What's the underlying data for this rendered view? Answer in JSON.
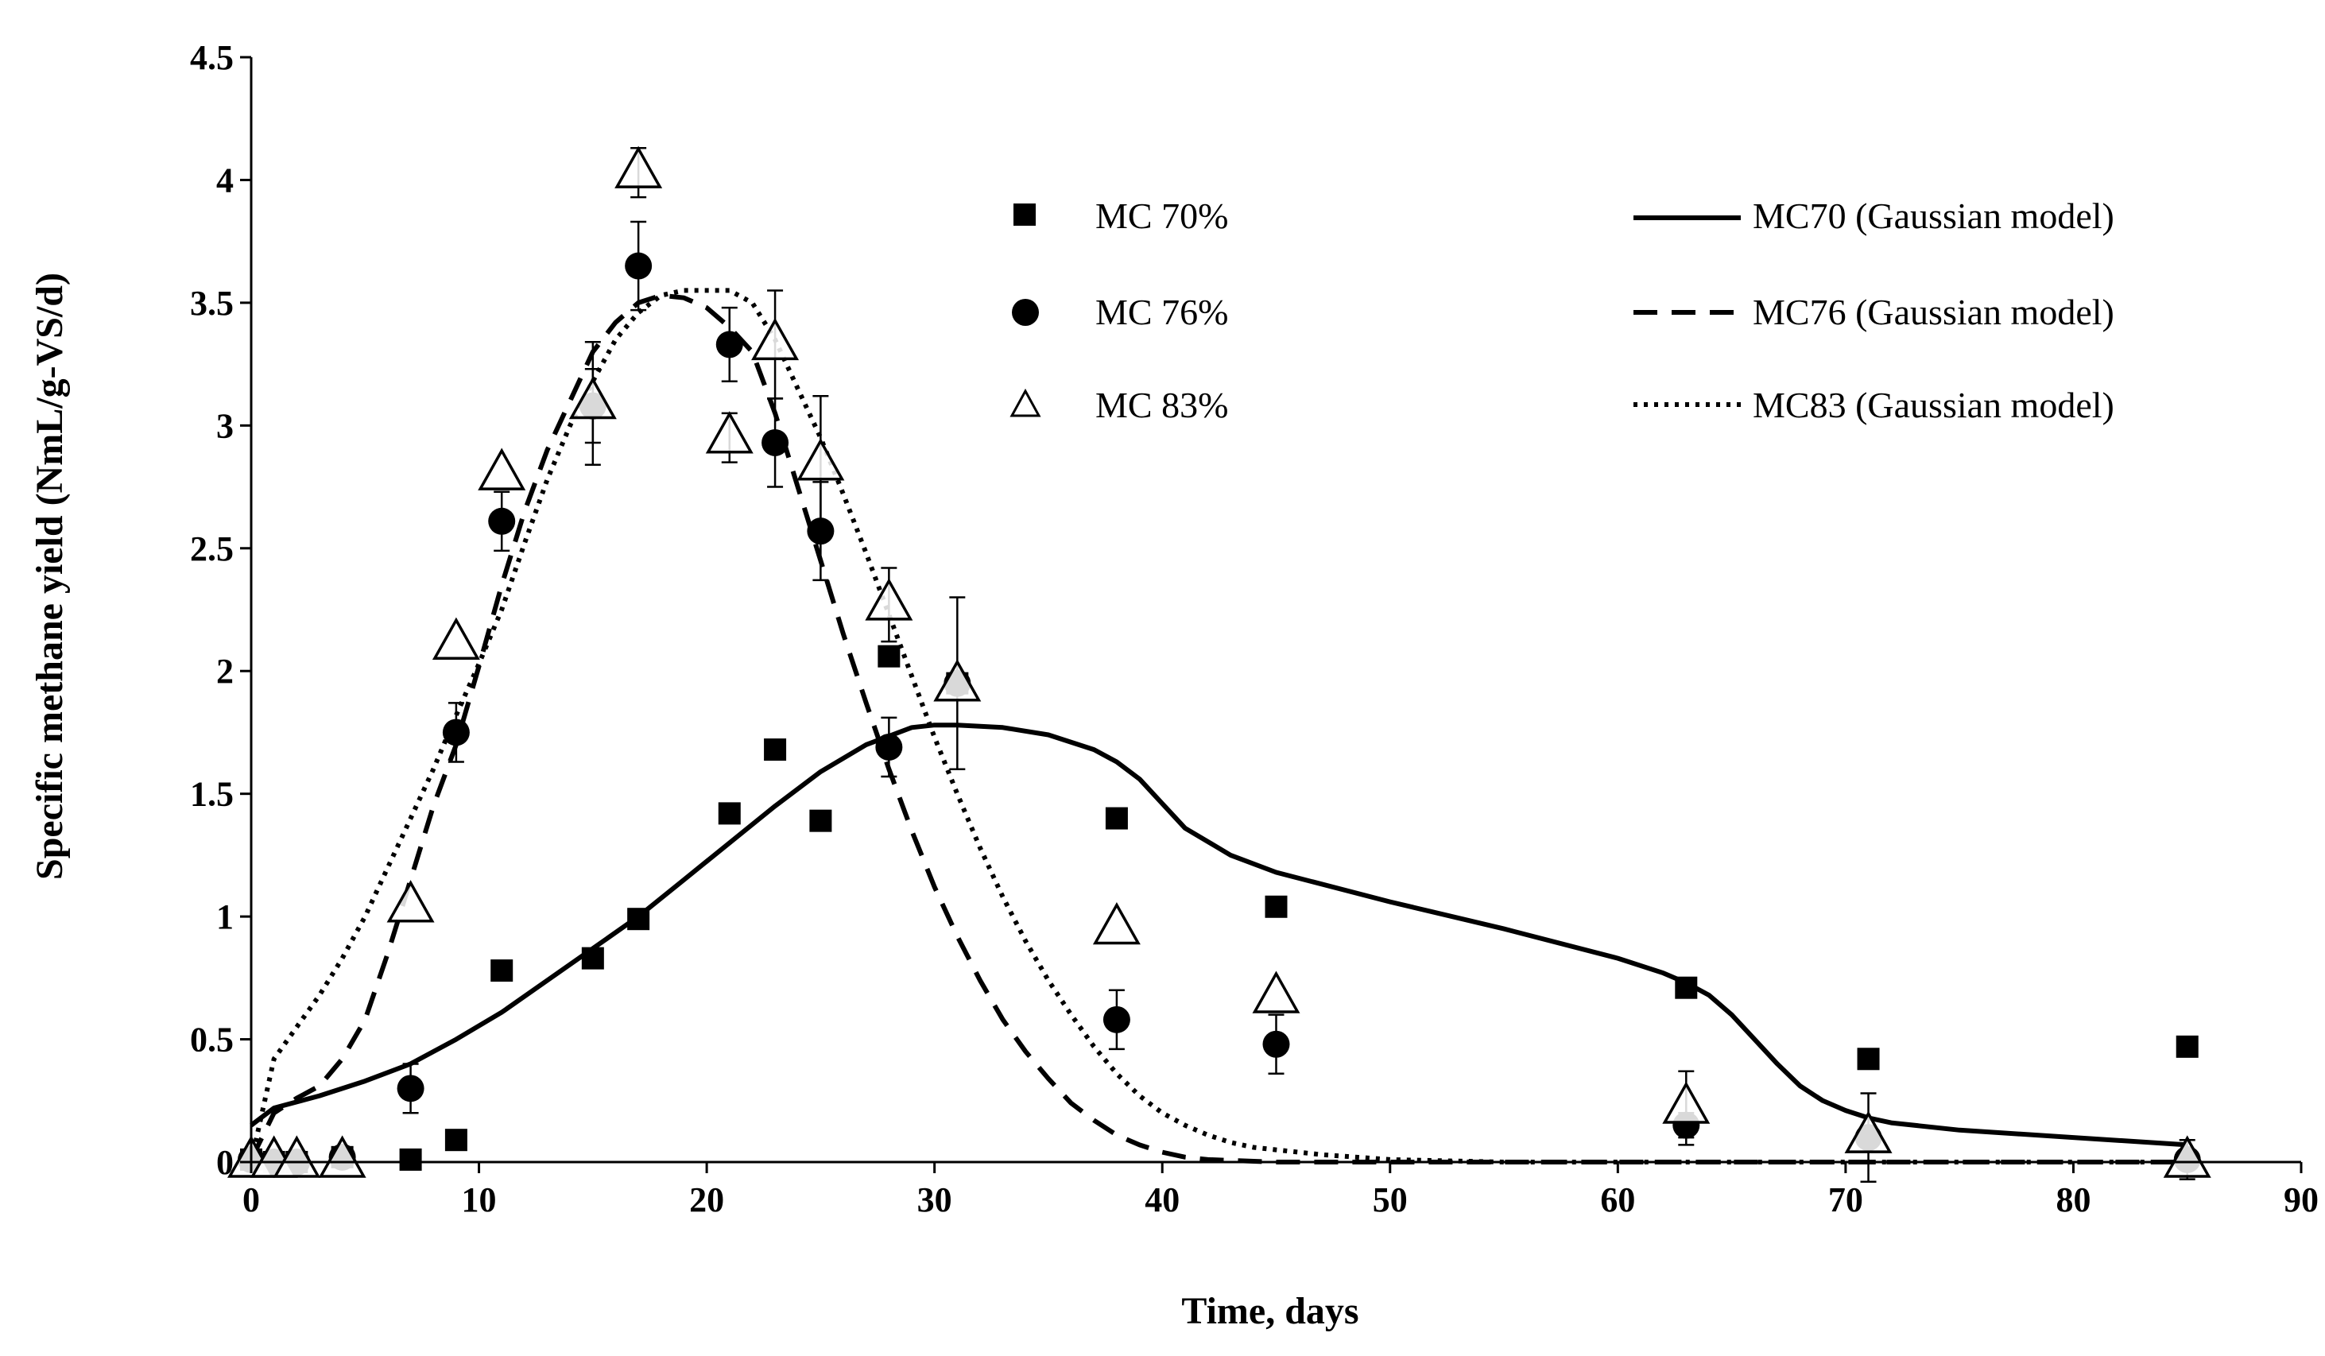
{
  "chart_data": {
    "type": "scatter",
    "title": "",
    "xlabel": "Time, days",
    "ylabel": "Specific methane yield (NmL/g-VS/d)",
    "xlim": [
      0,
      90
    ],
    "ylim": [
      0,
      4.5
    ],
    "xticks": [
      0,
      10,
      20,
      30,
      40,
      50,
      60,
      70,
      80,
      90
    ],
    "yticks": [
      0,
      0.5,
      1,
      1.5,
      2,
      2.5,
      3,
      3.5,
      4,
      4.5
    ],
    "xtick_labels": [
      "0",
      "10",
      "20",
      "30",
      "40",
      "50",
      "60",
      "70",
      "80",
      "90"
    ],
    "ytick_labels": [
      "0",
      "0.5",
      "1",
      "1.5",
      "2",
      "2.5",
      "3",
      "3.5",
      "4",
      "4.5"
    ],
    "grid": false,
    "legend": {
      "placement": "top-right",
      "markers": [
        {
          "label": "MC 70%",
          "series": "MC 70%"
        },
        {
          "label": "MC 76%",
          "series": "MC 76%"
        },
        {
          "label": "MC 83%",
          "series": "MC 83%"
        }
      ],
      "lines": [
        {
          "label": "MC70 (Gaussian model)",
          "style": "solid"
        },
        {
          "label": "MC76 (Gaussian model)",
          "style": "dashed"
        },
        {
          "label": "MC83 (Gaussian model)",
          "style": "dotted"
        }
      ]
    },
    "series": [
      {
        "name": "MC 70%",
        "marker": "square",
        "color": "#000000",
        "points": [
          [
            0,
            0.01
          ],
          [
            1,
            0.0
          ],
          [
            2,
            0.0
          ],
          [
            4,
            0.02
          ],
          [
            7,
            0.01
          ],
          [
            9,
            0.09
          ],
          [
            11,
            0.78
          ],
          [
            15,
            0.83
          ],
          [
            17,
            0.99
          ],
          [
            21,
            1.42
          ],
          [
            23,
            1.68
          ],
          [
            25,
            1.39
          ],
          [
            28,
            2.06
          ],
          [
            31,
            1.95
          ],
          [
            38,
            1.4
          ],
          [
            45,
            1.04
          ],
          [
            63,
            0.71
          ],
          [
            71,
            0.42
          ],
          [
            85,
            0.47
          ]
        ],
        "errors": [
          0,
          0,
          0,
          0,
          0,
          0,
          0,
          0,
          0,
          0,
          0,
          0,
          0,
          0,
          0,
          0,
          0,
          0,
          0
        ]
      },
      {
        "name": "MC 76%",
        "marker": "circle",
        "color": "#000000",
        "points": [
          [
            0,
            0.01
          ],
          [
            1,
            0.0
          ],
          [
            2,
            0.0
          ],
          [
            4,
            0.02
          ],
          [
            7,
            0.3
          ],
          [
            9,
            1.75
          ],
          [
            11,
            2.61
          ],
          [
            15,
            3.08
          ],
          [
            17,
            3.65
          ],
          [
            21,
            3.33
          ],
          [
            23,
            2.93
          ],
          [
            25,
            2.57
          ],
          [
            28,
            1.69
          ],
          [
            31,
            1.95
          ],
          [
            38,
            0.58
          ],
          [
            45,
            0.48
          ],
          [
            63,
            0.15
          ],
          [
            71,
            0.1
          ],
          [
            85,
            0.01
          ]
        ],
        "errors": [
          0,
          0,
          0,
          0,
          0.1,
          0.12,
          0.12,
          0.15,
          0.18,
          0.15,
          0.18,
          0.2,
          0.12,
          0.35,
          0.12,
          0.12,
          0.05,
          0.18,
          0.08
        ]
      },
      {
        "name": "MC 83%",
        "marker": "triangle-open",
        "color": "#000000",
        "points": [
          [
            0,
            0.0
          ],
          [
            1,
            0.0
          ],
          [
            2,
            0.0
          ],
          [
            4,
            0.0
          ],
          [
            7,
            1.04
          ],
          [
            9,
            2.11
          ],
          [
            11,
            2.8
          ],
          [
            15,
            3.09
          ],
          [
            17,
            4.03
          ],
          [
            21,
            2.95
          ],
          [
            23,
            3.33
          ],
          [
            25,
            2.84
          ],
          [
            28,
            2.27
          ],
          [
            31,
            1.94
          ],
          [
            38,
            0.95
          ],
          [
            45,
            0.67
          ],
          [
            63,
            0.22
          ],
          [
            71,
            0.1
          ],
          [
            85,
            0.0
          ]
        ],
        "errors": [
          0,
          0,
          0,
          0,
          0,
          0,
          0,
          0.25,
          0.1,
          0.1,
          0.22,
          0.28,
          0.15,
          0,
          0,
          0,
          0.15,
          0,
          0
        ]
      }
    ],
    "model_curves": [
      {
        "name": "MC70 (Gaussian model)",
        "style": "solid",
        "x": [
          0,
          1,
          3,
          5,
          7,
          9,
          11,
          13,
          15,
          17,
          19,
          21,
          23,
          25,
          27,
          29,
          30,
          31,
          33,
          35,
          37,
          38,
          39,
          40,
          41,
          43,
          45,
          50,
          55,
          60,
          62,
          63,
          64,
          65,
          66,
          67,
          68,
          69,
          70,
          71,
          72,
          75,
          80,
          85
        ],
        "y": [
          0.15,
          0.22,
          0.27,
          0.33,
          0.4,
          0.5,
          0.61,
          0.74,
          0.87,
          1.0,
          1.15,
          1.3,
          1.45,
          1.59,
          1.7,
          1.77,
          1.78,
          1.78,
          1.77,
          1.74,
          1.68,
          1.63,
          1.56,
          1.46,
          1.36,
          1.25,
          1.18,
          1.06,
          0.95,
          0.83,
          0.77,
          0.73,
          0.68,
          0.6,
          0.5,
          0.4,
          0.31,
          0.25,
          0.21,
          0.18,
          0.16,
          0.13,
          0.1,
          0.07
        ]
      },
      {
        "name": "MC76 (Gaussian model)",
        "style": "dashed",
        "x": [
          0,
          1,
          2,
          3,
          4,
          5,
          6,
          7,
          8,
          9,
          10,
          11,
          12,
          13,
          14,
          15,
          16,
          17,
          18,
          19,
          20,
          21,
          22,
          23,
          24,
          25,
          26,
          27,
          28,
          29,
          30,
          31,
          32,
          33,
          34,
          35,
          36,
          37,
          38,
          39,
          40,
          41,
          42,
          45,
          50,
          55,
          60,
          70,
          85
        ],
        "y": [
          0.01,
          0.2,
          0.26,
          0.31,
          0.42,
          0.58,
          0.85,
          1.15,
          1.45,
          1.7,
          2.02,
          2.35,
          2.65,
          2.9,
          3.1,
          3.3,
          3.42,
          3.5,
          3.53,
          3.52,
          3.48,
          3.4,
          3.3,
          3.05,
          2.75,
          2.45,
          2.15,
          1.87,
          1.6,
          1.35,
          1.12,
          0.92,
          0.74,
          0.58,
          0.45,
          0.34,
          0.24,
          0.17,
          0.11,
          0.07,
          0.04,
          0.02,
          0.01,
          0.0,
          0.0,
          0.0,
          0.0,
          0.0,
          0.0
        ]
      },
      {
        "name": "MC83 (Gaussian model)",
        "style": "dotted",
        "x": [
          0,
          1,
          2,
          3,
          4,
          5,
          6,
          7,
          8,
          9,
          10,
          11,
          12,
          13,
          14,
          15,
          16,
          17,
          18,
          19,
          20,
          21,
          22,
          23,
          24,
          25,
          26,
          27,
          28,
          29,
          30,
          31,
          32,
          33,
          34,
          35,
          36,
          37,
          38,
          39,
          40,
          41,
          42,
          43,
          44,
          45,
          47,
          50,
          55,
          60,
          70,
          85
        ],
        "y": [
          0.0,
          0.42,
          0.55,
          0.68,
          0.83,
          1.0,
          1.2,
          1.4,
          1.6,
          1.82,
          2.03,
          2.25,
          2.52,
          2.78,
          3.0,
          3.18,
          3.35,
          3.46,
          3.53,
          3.55,
          3.55,
          3.55,
          3.5,
          3.35,
          3.15,
          2.95,
          2.72,
          2.48,
          2.23,
          1.98,
          1.73,
          1.5,
          1.28,
          1.08,
          0.9,
          0.74,
          0.6,
          0.47,
          0.36,
          0.27,
          0.2,
          0.15,
          0.11,
          0.08,
          0.06,
          0.05,
          0.03,
          0.01,
          0.0,
          0.0,
          0.0,
          0.0
        ]
      }
    ]
  }
}
